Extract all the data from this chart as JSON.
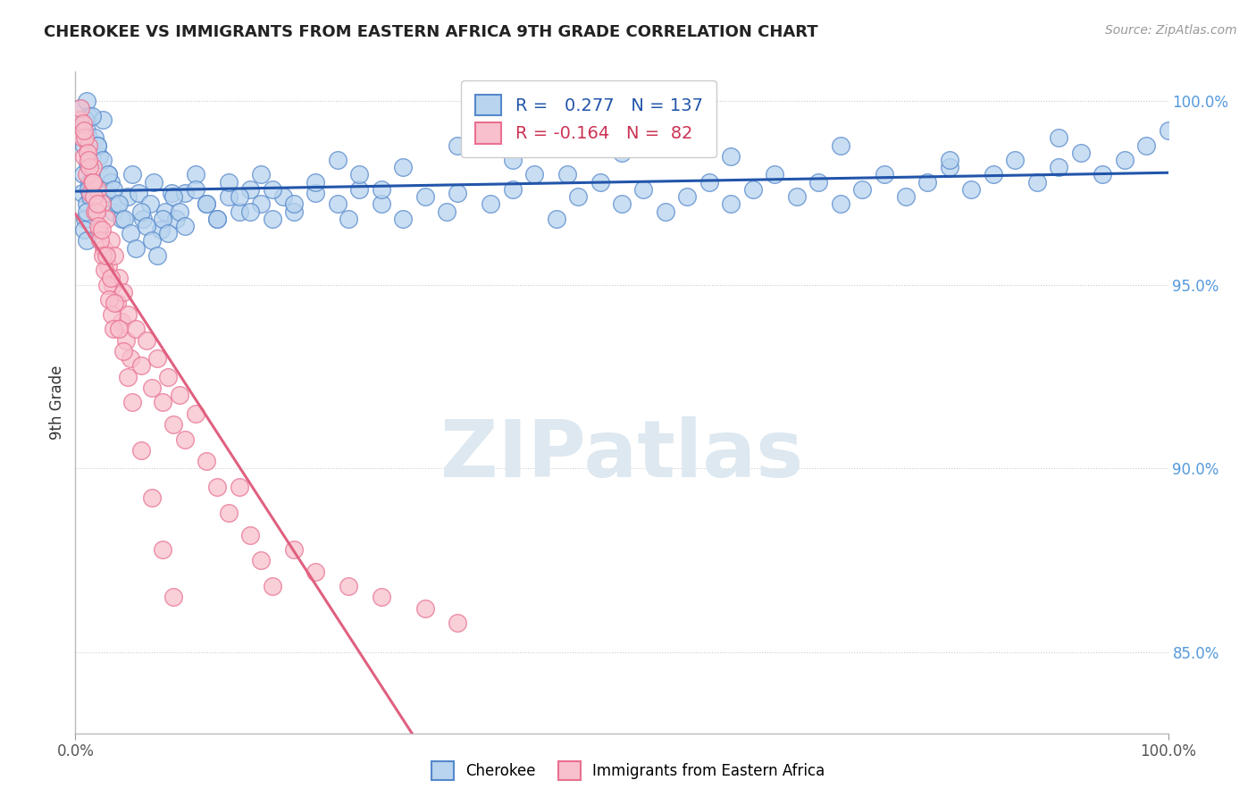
{
  "title": "CHEROKEE VS IMMIGRANTS FROM EASTERN AFRICA 9TH GRADE CORRELATION CHART",
  "source": "Source: ZipAtlas.com",
  "ylabel": "9th Grade",
  "right_yticks": [
    85.0,
    90.0,
    95.0,
    100.0
  ],
  "xlim": [
    0.0,
    1.0
  ],
  "ylim": [
    0.828,
    1.008
  ],
  "blue_R": 0.277,
  "blue_N": 137,
  "pink_R": -0.164,
  "pink_N": 82,
  "blue_color": "#b8d4ee",
  "blue_edge_color": "#5588cc",
  "blue_line_color": "#2255aa",
  "pink_color": "#f8c0cc",
  "pink_edge_color": "#e87090",
  "pink_line_color": "#e06080",
  "pink_dash_color": "#e0a0b0",
  "watermark": "ZIPatlas",
  "legend_blue_label": "Cherokee",
  "legend_pink_label": "Immigrants from Eastern Africa",
  "blue_scatter_x": [
    0.005,
    0.008,
    0.01,
    0.012,
    0.01,
    0.008,
    0.015,
    0.012,
    0.009,
    0.007,
    0.006,
    0.01,
    0.013,
    0.011,
    0.009,
    0.014,
    0.01,
    0.008,
    0.012,
    0.01,
    0.018,
    0.022,
    0.025,
    0.03,
    0.028,
    0.02,
    0.035,
    0.032,
    0.038,
    0.042,
    0.048,
    0.052,
    0.058,
    0.062,
    0.068,
    0.072,
    0.078,
    0.082,
    0.088,
    0.092,
    0.1,
    0.11,
    0.12,
    0.13,
    0.14,
    0.15,
    0.16,
    0.17,
    0.18,
    0.19,
    0.2,
    0.22,
    0.24,
    0.25,
    0.26,
    0.28,
    0.3,
    0.32,
    0.34,
    0.35,
    0.38,
    0.4,
    0.42,
    0.44,
    0.46,
    0.48,
    0.5,
    0.52,
    0.54,
    0.56,
    0.58,
    0.6,
    0.62,
    0.64,
    0.66,
    0.68,
    0.7,
    0.72,
    0.74,
    0.76,
    0.78,
    0.8,
    0.82,
    0.84,
    0.86,
    0.88,
    0.9,
    0.92,
    0.94,
    0.96,
    0.98,
    1.0,
    0.015,
    0.02,
    0.025,
    0.03,
    0.035,
    0.04,
    0.045,
    0.05,
    0.055,
    0.06,
    0.065,
    0.07,
    0.075,
    0.08,
    0.085,
    0.09,
    0.095,
    0.1,
    0.11,
    0.12,
    0.13,
    0.14,
    0.15,
    0.16,
    0.17,
    0.18,
    0.2,
    0.22,
    0.24,
    0.26,
    0.28,
    0.3,
    0.35,
    0.4,
    0.45,
    0.5,
    0.6,
    0.7,
    0.8,
    0.9
  ],
  "blue_scatter_y": [
    0.998,
    0.994,
    1.0,
    0.996,
    0.992,
    0.988,
    0.985,
    0.99,
    0.995,
    0.98,
    0.975,
    0.972,
    0.978,
    0.983,
    0.968,
    0.974,
    0.97,
    0.965,
    0.976,
    0.962,
    0.99,
    0.985,
    0.995,
    0.98,
    0.975,
    0.988,
    0.97,
    0.978,
    0.972,
    0.968,
    0.974,
    0.98,
    0.975,
    0.968,
    0.972,
    0.978,
    0.965,
    0.97,
    0.975,
    0.968,
    0.975,
    0.98,
    0.972,
    0.968,
    0.974,
    0.97,
    0.976,
    0.972,
    0.968,
    0.974,
    0.97,
    0.975,
    0.972,
    0.968,
    0.976,
    0.972,
    0.968,
    0.974,
    0.97,
    0.975,
    0.972,
    0.976,
    0.98,
    0.968,
    0.974,
    0.978,
    0.972,
    0.976,
    0.97,
    0.974,
    0.978,
    0.972,
    0.976,
    0.98,
    0.974,
    0.978,
    0.972,
    0.976,
    0.98,
    0.974,
    0.978,
    0.982,
    0.976,
    0.98,
    0.984,
    0.978,
    0.982,
    0.986,
    0.98,
    0.984,
    0.988,
    0.992,
    0.996,
    0.988,
    0.984,
    0.98,
    0.976,
    0.972,
    0.968,
    0.964,
    0.96,
    0.97,
    0.966,
    0.962,
    0.958,
    0.968,
    0.964,
    0.974,
    0.97,
    0.966,
    0.976,
    0.972,
    0.968,
    0.978,
    0.974,
    0.97,
    0.98,
    0.976,
    0.972,
    0.978,
    0.984,
    0.98,
    0.976,
    0.982,
    0.988,
    0.984,
    0.98,
    0.986,
    0.985,
    0.988,
    0.984,
    0.99
  ],
  "pink_scatter_x": [
    0.004,
    0.006,
    0.008,
    0.01,
    0.012,
    0.014,
    0.016,
    0.018,
    0.02,
    0.022,
    0.024,
    0.026,
    0.028,
    0.03,
    0.032,
    0.034,
    0.036,
    0.038,
    0.04,
    0.042,
    0.044,
    0.046,
    0.048,
    0.05,
    0.055,
    0.06,
    0.065,
    0.07,
    0.075,
    0.08,
    0.085,
    0.09,
    0.095,
    0.1,
    0.11,
    0.12,
    0.13,
    0.14,
    0.15,
    0.16,
    0.17,
    0.18,
    0.2,
    0.22,
    0.25,
    0.28,
    0.32,
    0.35,
    0.005,
    0.007,
    0.009,
    0.011,
    0.013,
    0.015,
    0.017,
    0.019,
    0.021,
    0.023,
    0.025,
    0.027,
    0.029,
    0.031,
    0.033,
    0.035,
    0.008,
    0.012,
    0.016,
    0.02,
    0.024,
    0.028,
    0.032,
    0.036,
    0.04,
    0.044,
    0.048,
    0.052,
    0.06,
    0.07,
    0.08,
    0.09
  ],
  "pink_scatter_y": [
    0.995,
    0.99,
    0.985,
    0.98,
    0.988,
    0.975,
    0.982,
    0.97,
    0.976,
    0.965,
    0.972,
    0.96,
    0.968,
    0.955,
    0.962,
    0.95,
    0.958,
    0.945,
    0.952,
    0.94,
    0.948,
    0.935,
    0.942,
    0.93,
    0.938,
    0.928,
    0.935,
    0.922,
    0.93,
    0.918,
    0.925,
    0.912,
    0.92,
    0.908,
    0.915,
    0.902,
    0.895,
    0.888,
    0.895,
    0.882,
    0.875,
    0.868,
    0.878,
    0.872,
    0.868,
    0.865,
    0.862,
    0.858,
    0.998,
    0.994,
    0.99,
    0.986,
    0.982,
    0.978,
    0.974,
    0.97,
    0.966,
    0.962,
    0.958,
    0.954,
    0.95,
    0.946,
    0.942,
    0.938,
    0.992,
    0.984,
    0.978,
    0.972,
    0.965,
    0.958,
    0.952,
    0.945,
    0.938,
    0.932,
    0.925,
    0.918,
    0.905,
    0.892,
    0.878,
    0.865
  ]
}
